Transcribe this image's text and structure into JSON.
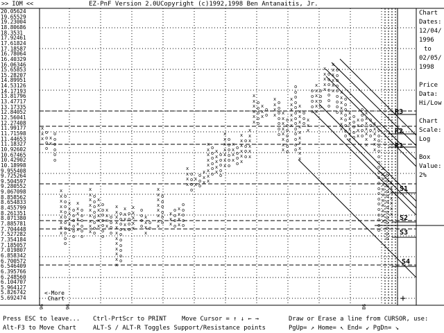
{
  "header": {
    "nav": ">> IOM <<",
    "title": "EZ-PnF Version 2.0UCopyright (c)1992,1998 Ben Antanaitis, Jr."
  },
  "price_axis": [
    "20.05624",
    "19.65529",
    "19.23004",
    "18.80686",
    "18.3531",
    "17.92461",
    "17.61824",
    "17.18587",
    "16.78064",
    "16.40329",
    "16.06346",
    "15.65853",
    "15.28207",
    "14.89951",
    "14.53126",
    "14.17193",
    "13.81796",
    "13.47717",
    "13.17335",
    "12.84052",
    "12.56041",
    "12.27408",
    "11.99177",
    "11.71598",
    "11.44653",
    "11.18327",
    "10.92602",
    "10.67465",
    "10.42902",
    "10.18998",
    "9.955408",
    "9.725264",
    "9.504597",
    "9.280552",
    "9.067098",
    "8.858562",
    "8.654833",
    "8.455799",
    "8.261351",
    "8.071380",
    "7.885781",
    "7.704448",
    "7.527282",
    "7.354184",
    "7.185057",
    "7.019807",
    "6.858342",
    "6.700572",
    "6.546409",
    "6.395766",
    "6.248560",
    "6.104707",
    "5.964127",
    "5.826742",
    "5.692474"
  ],
  "side_panel": {
    "chart_dates_label": [
      "Chart",
      "Dates:"
    ],
    "start_date": "12/04/",
    "start_year": "1996",
    "to": "to",
    "end_date": "02/05/",
    "end_year": "1998",
    "price_data_label": [
      "Price",
      "Data:"
    ],
    "price_data_value": "Hi/Low",
    "chart_scale_label": [
      "Chart",
      "Scale:"
    ],
    "chart_scale_value": "Log",
    "box_value_label": [
      "Box",
      "Value:"
    ],
    "box_value_value": "2%"
  },
  "levels": [
    {
      "label": "R3"
    },
    {
      "label": "R2"
    },
    {
      "label": "R1"
    },
    {
      "label": "S1"
    },
    {
      "label": "S2"
    },
    {
      "label": "S3"
    },
    {
      "label": "S4"
    }
  ],
  "more_chart": "<-More\n Chart",
  "x_axis_markers": [
    "96",
    "96",
    "98"
  ],
  "cursor_glyph": "+",
  "footer": {
    "line1_left": "Press ESC to leave...",
    "line1_mid": "Ctrl-PrtScr to PRINT",
    "line1_cursor": "Move Cursor = ↑ ↓ ← →",
    "line1_right": "Draw or Erase a line from CURSOR, use:",
    "line2_left": "Alt-F3 to Move Chart",
    "line2_mid": "ALT-S / ALT-R Toggles Support/Resistance points",
    "line2_right": "PgUp= ↗ Home= ↖ End= ↙ PgDn= ↘"
  }
}
